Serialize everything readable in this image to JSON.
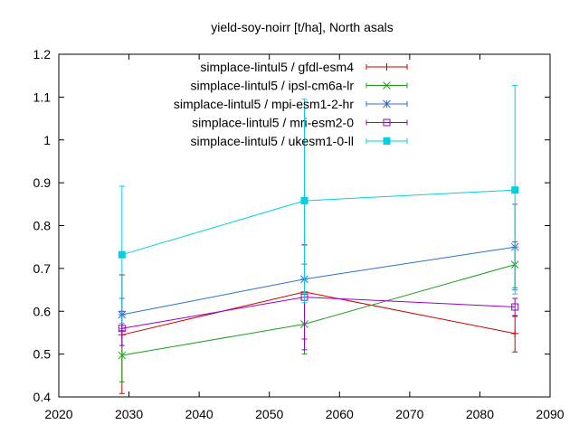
{
  "chart_data": {
    "type": "line",
    "title": "yield-soy-noirr [t/ha], North asals",
    "xlabel": "",
    "ylabel": "",
    "xlim": [
      2020,
      2090
    ],
    "ylim": [
      0.4,
      1.2
    ],
    "xticks": [
      "2020",
      "2030",
      "2040",
      "2050",
      "2060",
      "2070",
      "2080",
      "2090"
    ],
    "yticks": [
      "0.4",
      "0.5",
      "0.6",
      "0.7",
      "0.8",
      "0.9",
      "1",
      "1.1",
      "1.2"
    ],
    "grid": false,
    "legend_position": "top-right",
    "x": [
      2029,
      2055,
      2085
    ],
    "series": [
      {
        "name": "simplace-lintul5 / gfdl-esm4",
        "color": "#cc0000",
        "marker": "plus",
        "values": [
          0.545,
          0.645,
          0.548
        ],
        "err_low": [
          0.408,
          0.535,
          0.505
        ],
        "err_high": [
          0.685,
          0.755,
          0.588
        ]
      },
      {
        "name": "simplace-lintul5 / ipsl-cm6a-lr",
        "color": "#1a9e1a",
        "marker": "x",
        "values": [
          0.497,
          0.57,
          0.709
        ],
        "err_low": [
          0.435,
          0.5,
          0.655
        ],
        "err_high": [
          0.56,
          0.64,
          0.762
        ]
      },
      {
        "name": "simplace-lintul5 / mpi-esm1-2-hr",
        "color": "#2e6fd0",
        "marker": "star",
        "values": [
          0.592,
          0.675,
          0.75
        ],
        "err_low": [
          0.555,
          0.64,
          0.65
        ],
        "err_high": [
          0.63,
          0.71,
          0.85
        ]
      },
      {
        "name": "simplace-lintul5 / mri-esm2-0",
        "color": "#9900cc",
        "marker": "square-open",
        "values": [
          0.56,
          0.633,
          0.61
        ],
        "err_low": [
          0.52,
          0.51,
          0.59
        ],
        "err_high": [
          0.6,
          0.755,
          0.63
        ]
      },
      {
        "name": "simplace-lintul5 / ukesm1-0-ll",
        "color": "#00d0e0",
        "marker": "square-filled",
        "values": [
          0.732,
          0.858,
          0.883
        ],
        "err_low": [
          0.572,
          0.62,
          0.64
        ],
        "err_high": [
          0.892,
          1.095,
          1.127
        ]
      }
    ]
  }
}
